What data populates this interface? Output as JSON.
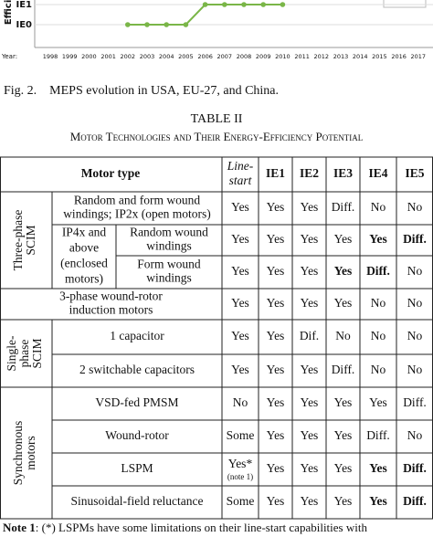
{
  "figure": {
    "ylabel": "Efficie",
    "yticks": [
      {
        "value": 1,
        "label": "IE1"
      },
      {
        "value": 0,
        "label": "IE0"
      }
    ],
    "xlabel": "Year:",
    "years": [
      "1998",
      "1999",
      "2000",
      "2001",
      "2002",
      "2003",
      "2004",
      "2005",
      "2006",
      "2007",
      "2008",
      "2009",
      "2010",
      "2011",
      "2012",
      "2013",
      "2014",
      "2015",
      "2016",
      "2017"
    ],
    "values": [
      null,
      null,
      null,
      null,
      0,
      0,
      0,
      0,
      1,
      1,
      1,
      1,
      1,
      null,
      null,
      null,
      null,
      null,
      null,
      null
    ],
    "color": "#7ab648",
    "caption": "Fig. 2.    MEPS evolution in USA, EU-27, and China."
  },
  "table": {
    "label": "TABLE II",
    "title": "Motor Technologies and Their Energy-Efficiency Potential",
    "header": [
      "Motor type",
      [
        "Line-",
        "start"
      ],
      "IE1",
      "IE2",
      "IE3",
      "IE4",
      "IE5"
    ],
    "groups": [
      [
        "Three-phase",
        "SCIM"
      ],
      [
        "Single-",
        "phase",
        "SCIM"
      ],
      [
        "Synchronous",
        "motors"
      ]
    ],
    "subgroup": [
      "IP4x and",
      "above",
      "(enclosed",
      "motors)"
    ],
    "rows": [
      {
        "type": [
          "Random and form wound",
          "windings; IP2x (open motors)"
        ],
        "cells": [
          "Yes",
          "Yes",
          "Yes",
          "Diff.",
          "No",
          "No"
        ],
        "bold": []
      },
      {
        "type": [
          "Random wound",
          "windings"
        ],
        "cells": [
          "Yes",
          "Yes",
          "Yes",
          "Yes",
          "Yes",
          "Diff."
        ],
        "bold": [
          4,
          5
        ]
      },
      {
        "type": [
          "Form wound",
          "windings"
        ],
        "cells": [
          "Yes",
          "Yes",
          "Yes",
          "Yes",
          "Diff.",
          "No"
        ],
        "bold": [
          3,
          4
        ]
      },
      {
        "type": [
          "3-phase wound-rotor",
          "induction motors"
        ],
        "cells": [
          "Yes",
          "Yes",
          "Yes",
          "Yes",
          "No",
          "No"
        ],
        "bold": []
      },
      {
        "type": [
          "1 capacitor"
        ],
        "cells": [
          "Yes",
          "Yes",
          "Dif.",
          "No",
          "No",
          "No"
        ],
        "bold": []
      },
      {
        "type": [
          "2 switchable capacitors"
        ],
        "cells": [
          "Yes",
          "Yes",
          "Yes",
          "Diff.",
          "No",
          "No"
        ],
        "bold": []
      },
      {
        "type": [
          "VSD-fed PMSM"
        ],
        "cells": [
          "No",
          "Yes",
          "Yes",
          "Yes",
          "Yes",
          "Diff."
        ],
        "bold": []
      },
      {
        "type": [
          "Wound-rotor"
        ],
        "cells": [
          "Some",
          "Yes",
          "Yes",
          "Yes",
          "Diff.",
          "No"
        ],
        "bold": []
      },
      {
        "type": [
          "LSPM"
        ],
        "cells": [
          [
            "Yes*",
            "(note 1)"
          ],
          "Yes",
          "Yes",
          "Yes",
          "Yes",
          "Diff."
        ],
        "bold": [
          4,
          5
        ]
      },
      {
        "type": [
          "Sinusoidal-field reluctance"
        ],
        "cells": [
          "Some",
          "Yes",
          "Yes",
          "Yes",
          "Yes",
          "Diff."
        ],
        "bold": [
          4,
          5
        ]
      }
    ],
    "note_label": "Note 1",
    "note": ": (*) LSPMs have some limitations on their line-start capabilities with"
  }
}
